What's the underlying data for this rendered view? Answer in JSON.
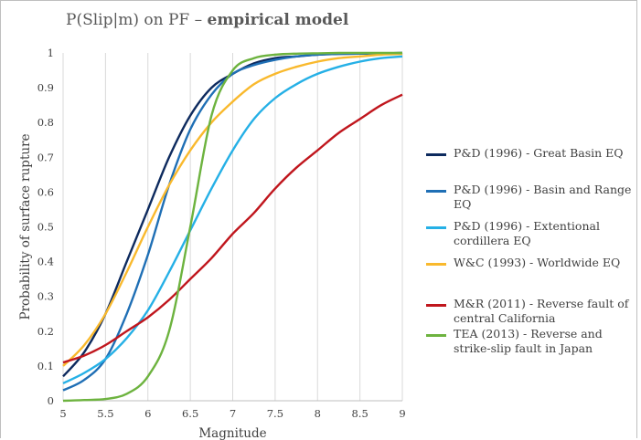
{
  "title": {
    "prefix": "P(Slip|m) on PF – ",
    "bold": "empirical model"
  },
  "colors": {
    "great_basin": "#0d2a5e",
    "basin_range": "#1f6fb5",
    "extentional": "#25b0e6",
    "worldwide": "#f9b92d",
    "mr": "#c0161d",
    "tea": "#6db33f"
  },
  "chart_data": {
    "type": "line",
    "title": "P(Slip|m) on PF – empirical model",
    "xlabel": "Magnitude",
    "ylabel": "Probability of surface rupture",
    "xlim": [
      5,
      9
    ],
    "ylim": [
      0,
      1
    ],
    "x_ticks": [
      "5",
      "5.5",
      "6",
      "6.5",
      "7",
      "7.5",
      "8",
      "8.5",
      "9"
    ],
    "y_ticks": [
      "0",
      "0.1",
      "0.2",
      "0.3",
      "0.4",
      "0.5",
      "0.6",
      "0.7",
      "0.8",
      "0.9",
      "1"
    ],
    "grid": "vertical",
    "legend_position": "right",
    "x": [
      5.0,
      5.25,
      5.5,
      5.75,
      6.0,
      6.25,
      6.5,
      6.75,
      7.0,
      7.25,
      7.5,
      7.75,
      8.0,
      8.25,
      8.5,
      8.75,
      9.0
    ],
    "series": [
      {
        "name": "P&D (1996) - Great Basin EQ",
        "color": "#0d2a5e",
        "values": [
          0.07,
          0.14,
          0.25,
          0.4,
          0.55,
          0.7,
          0.82,
          0.9,
          0.94,
          0.97,
          0.985,
          0.99,
          0.995,
          0.997,
          0.998,
          0.999,
          1.0
        ]
      },
      {
        "name": "P&D (1996) - Basin and Range EQ",
        "color": "#1f6fb5",
        "values": [
          0.03,
          0.06,
          0.12,
          0.25,
          0.42,
          0.62,
          0.78,
          0.88,
          0.94,
          0.965,
          0.98,
          0.99,
          0.995,
          0.997,
          0.998,
          0.999,
          1.0
        ]
      },
      {
        "name": "P&D (1996) - Extentional cordillera EQ",
        "color": "#25b0e6",
        "values": [
          0.05,
          0.08,
          0.12,
          0.18,
          0.26,
          0.37,
          0.49,
          0.61,
          0.72,
          0.81,
          0.87,
          0.91,
          0.94,
          0.96,
          0.975,
          0.985,
          0.99
        ]
      },
      {
        "name": "W&C (1993) - Worldwide EQ",
        "color": "#f9b92d",
        "values": [
          0.1,
          0.16,
          0.25,
          0.37,
          0.5,
          0.62,
          0.72,
          0.8,
          0.86,
          0.91,
          0.94,
          0.96,
          0.975,
          0.985,
          0.99,
          0.995,
          0.997
        ]
      },
      {
        "name": "M&R (2011) - Reverse fault of central California",
        "color": "#c0161d",
        "values": [
          0.11,
          0.13,
          0.16,
          0.2,
          0.24,
          0.29,
          0.35,
          0.41,
          0.48,
          0.54,
          0.61,
          0.67,
          0.72,
          0.77,
          0.81,
          0.85,
          0.88
        ]
      },
      {
        "name": "TEA (2013) - Reverse and strike-slip fault in Japan",
        "color": "#6db33f",
        "values": [
          0.0,
          0.002,
          0.005,
          0.02,
          0.07,
          0.2,
          0.5,
          0.82,
          0.95,
          0.985,
          0.995,
          0.998,
          0.999,
          1.0,
          1.0,
          1.0,
          1.0
        ]
      }
    ]
  }
}
